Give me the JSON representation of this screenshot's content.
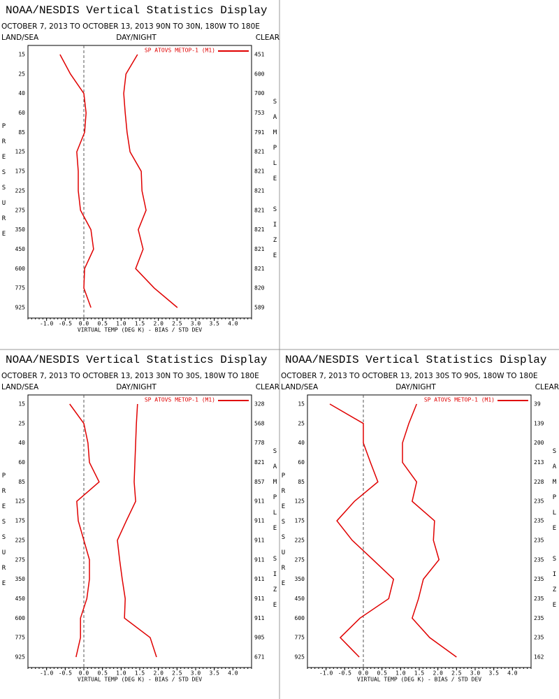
{
  "chart_data": [
    {
      "type": "line",
      "title": "NOAA/NESDIS Vertical Statistics Display",
      "subtitle": "OCTOBER 7, 2013 TO OCTOBER 13, 2013 90N TO 30N, 180W TO 180E",
      "left_header": "LAND/SEA",
      "center_header": "DAY/NIGHT",
      "right_header": "CLEAR",
      "y_label": "PRESSURE",
      "y2_label": "SAMPLE SIZE",
      "x_label": "VIRTUAL TEMP (DEG K) - BIAS / STD DEV",
      "categories": [
        "15",
        "25",
        "40",
        "60",
        "85",
        "125",
        "175",
        "225",
        "275",
        "350",
        "450",
        "600",
        "775",
        "925"
      ],
      "sample_size": [
        451,
        600,
        700,
        753,
        791,
        821,
        821,
        821,
        821,
        821,
        821,
        821,
        820,
        589
      ],
      "series": [
        {
          "name": "SP ATOVS METOP-1 (M1)",
          "color": "#e00000",
          "bias": [
            -0.64,
            -0.36,
            0.0,
            0.06,
            0.02,
            -0.19,
            -0.15,
            -0.15,
            -0.09,
            0.19,
            0.26,
            0.02,
            0.0,
            0.19
          ],
          "std_dev": [
            1.44,
            1.13,
            1.07,
            1.11,
            1.16,
            1.24,
            1.54,
            1.56,
            1.67,
            1.46,
            1.59,
            1.39,
            1.89,
            2.51
          ]
        }
      ],
      "xlim": [
        -1.5,
        4.5
      ],
      "xticks": [
        {
          "value": -1,
          "label": "-1.0"
        },
        -0.5,
        {
          "value": 0,
          "label": "0.0"
        },
        0.5,
        {
          "value": 1,
          "label": "1.0"
        },
        1.5,
        {
          "value": 2,
          "label": "2.0"
        },
        2.5,
        {
          "value": 3,
          "label": "3.0"
        },
        3.5,
        {
          "value": 4,
          "label": "4.0"
        }
      ]
    },
    {
      "type": "line",
      "title": "NOAA/NESDIS Vertical Statistics Display",
      "subtitle": "OCTOBER 7, 2013 TO OCTOBER 13, 2013 30N TO 30S, 180W TO 180E",
      "left_header": "LAND/SEA",
      "center_header": "DAY/NIGHT",
      "right_header": "CLEAR",
      "y_label": "PRESSURE",
      "y2_label": "SAMPLE SIZE",
      "x_label": "VIRTUAL TEMP (DEG K) - BIAS / STD DEV",
      "categories": [
        "15",
        "25",
        "40",
        "60",
        "85",
        "125",
        "175",
        "225",
        "275",
        "350",
        "450",
        "600",
        "775",
        "925"
      ],
      "sample_size": [
        328,
        568,
        778,
        821,
        857,
        911,
        911,
        911,
        911,
        911,
        911,
        911,
        905,
        671
      ],
      "series": [
        {
          "name": "SP ATOVS METOP-1 (M1)",
          "color": "#e00000",
          "bias": [
            -0.38,
            0.0,
            0.11,
            0.15,
            0.41,
            -0.19,
            -0.15,
            0.0,
            0.15,
            0.15,
            0.08,
            -0.09,
            -0.09,
            -0.21
          ],
          "std_dev": [
            1.44,
            1.41,
            1.39,
            1.37,
            1.35,
            1.39,
            1.14,
            0.9,
            0.96,
            1.03,
            1.11,
            1.09,
            1.78,
            1.95
          ]
        }
      ],
      "xlim": [
        -1.5,
        4.5
      ],
      "xticks": [
        {
          "value": -1,
          "label": "-1.0"
        },
        -0.5,
        {
          "value": 0,
          "label": "0.0"
        },
        0.5,
        {
          "value": 1,
          "label": "1.0"
        },
        1.5,
        {
          "value": 2,
          "label": "2.0"
        },
        2.5,
        {
          "value": 3,
          "label": "3.0"
        },
        3.5,
        {
          "value": 4,
          "label": "4.0"
        }
      ]
    },
    {
      "type": "line",
      "title": "NOAA/NESDIS Vertical Statistics Display",
      "subtitle": "OCTOBER 7, 2013 TO OCTOBER 13, 2013 30S TO 90S, 180W TO 180E",
      "left_header": "LAND/SEA",
      "center_header": "DAY/NIGHT",
      "right_header": "CLEAR",
      "y_label": "PRESSURE",
      "y2_label": "SAMPLE SIZE",
      "x_label": "VIRTUAL TEMP (DEG K) - BIAS / STD DEV",
      "categories": [
        "15",
        "25",
        "40",
        "60",
        "85",
        "125",
        "175",
        "225",
        "275",
        "350",
        "450",
        "600",
        "775",
        "925"
      ],
      "sample_size": [
        39,
        139,
        200,
        213,
        228,
        235,
        235,
        235,
        235,
        235,
        235,
        235,
        235,
        162
      ],
      "series": [
        {
          "name": "SP ATOVS METOP-1 (M1)",
          "color": "#e00000",
          "bias": [
            -0.9,
            0.0,
            0.0,
            0.19,
            0.39,
            -0.24,
            -0.71,
            -0.3,
            0.26,
            0.81,
            0.68,
            -0.09,
            -0.62,
            -0.11
          ],
          "std_dev": [
            1.43,
            1.22,
            1.05,
            1.05,
            1.43,
            1.31,
            1.91,
            1.88,
            2.03,
            1.61,
            1.48,
            1.31,
            1.78,
            2.5
          ]
        }
      ],
      "xlim": [
        -1.5,
        4.5
      ],
      "xticks": [
        {
          "value": -1,
          "label": "-1.0"
        },
        -0.5,
        {
          "value": 0,
          "label": "0.0"
        },
        0.5,
        {
          "value": 1,
          "label": "1.0"
        },
        1.5,
        {
          "value": 2,
          "label": "2.0"
        },
        2.5,
        {
          "value": 3,
          "label": "3.0"
        },
        3.5,
        {
          "value": 4,
          "label": "4.0"
        }
      ]
    }
  ]
}
